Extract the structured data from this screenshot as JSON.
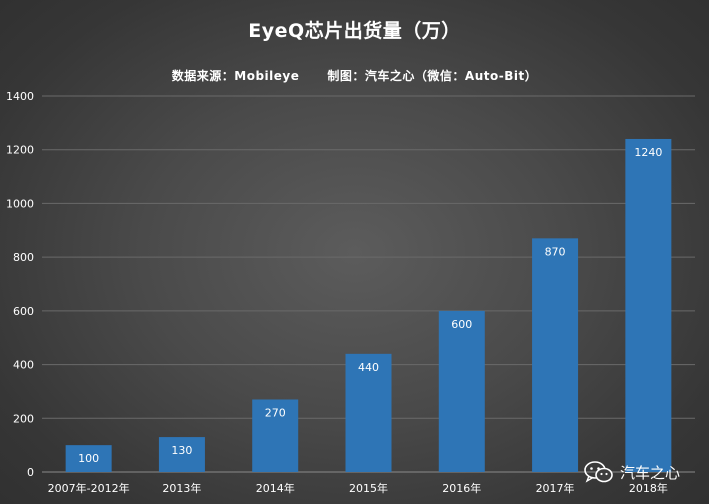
{
  "chart_data": {
    "type": "bar",
    "title": "EyeQ芯片出货量（万）",
    "subtitle": "数据来源：Mobileye      制图：汽车之心（微信：Auto-Bit）",
    "categories": [
      "2007年-2012年",
      "2013年",
      "2014年",
      "2015年",
      "2016年",
      "2017年",
      "2018年"
    ],
    "values": [
      100,
      130,
      270,
      440,
      600,
      870,
      1240
    ],
    "data_labels": [
      "100",
      "130",
      "270",
      "440",
      "600",
      "870",
      "1240"
    ],
    "y_ticks": [
      "0",
      "200",
      "400",
      "600",
      "800",
      "1000",
      "1200",
      "1400"
    ],
    "ylim": [
      0,
      1400
    ],
    "xlabel": "",
    "ylabel": "",
    "grid": true,
    "bar_color": "#2e75b6",
    "gridline_color": "#6a6a6a"
  },
  "watermark": {
    "icon": "wechat-icon",
    "text": "汽车之心"
  }
}
